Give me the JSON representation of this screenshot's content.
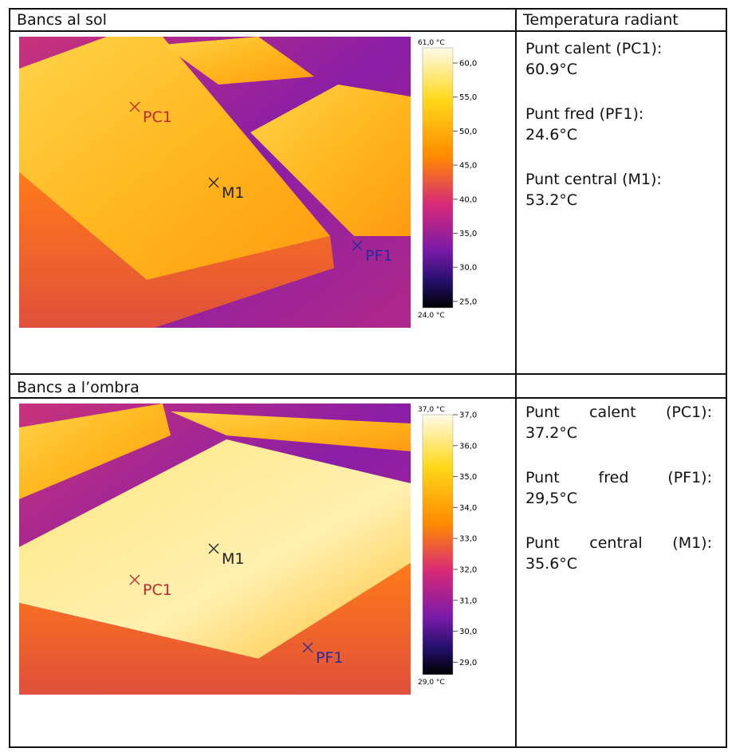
{
  "header_right": "Temperatura radiant",
  "sections": [
    {
      "heading": "Bancs al sol",
      "image": {
        "scale_max": "61,0 °C",
        "scale_min": "24,0 °C",
        "scale_ticks": [
          "60,0",
          "55,0",
          "50,0",
          "45,0",
          "40,0",
          "35,0",
          "30,0",
          "25,0"
        ],
        "markers": [
          "PC1",
          "M1",
          "PF1"
        ]
      },
      "readings": [
        {
          "label": "Punt calent (PC1):",
          "value": "60.9°C"
        },
        {
          "label": "Punt fred (PF1):",
          "value": "24.6°C"
        },
        {
          "label": "Punt central (M1):",
          "value": "53.2°C"
        }
      ]
    },
    {
      "heading": "Bancs a l’ombra",
      "image": {
        "scale_max": "37,0 °C",
        "scale_min": "29,0 °C",
        "scale_ticks": [
          "37,0",
          "36,0",
          "35,0",
          "34,0",
          "33,0",
          "32,0",
          "31,0",
          "30,0",
          "29,0"
        ],
        "markers": [
          "PC1",
          "M1",
          "PF1"
        ]
      },
      "readings": [
        {
          "label": "Punt calent (PC1):",
          "value": "37.2°C"
        },
        {
          "label": "Punt fred (PF1):",
          "value": "29,5°C"
        },
        {
          "label": "Punt central (M1):",
          "value": "35.6°C"
        }
      ]
    }
  ]
}
